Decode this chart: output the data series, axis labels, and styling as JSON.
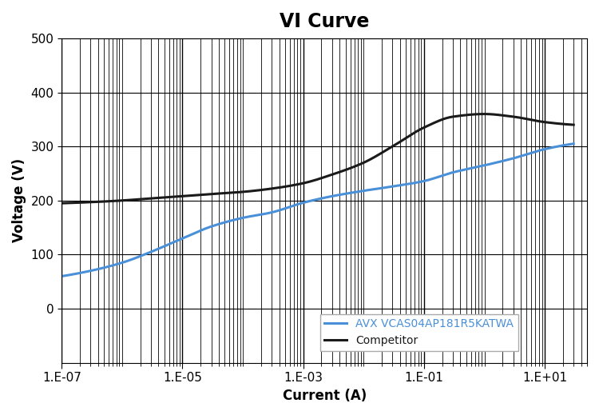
{
  "title": "VI Curve",
  "xlabel": "Current (A)",
  "ylabel": "Voltage (V)",
  "xmin": 1e-07,
  "xmax": 50,
  "ymin": -100,
  "ymax": 500,
  "yticks": [
    0,
    100,
    200,
    300,
    400,
    500
  ],
  "ytick_labels": [
    "0",
    "100",
    "200",
    "300",
    "400",
    "500"
  ],
  "xtick_labels": [
    "1.E-07",
    "1.E-05",
    "1.E-03",
    "1.E-01",
    "1.E+01"
  ],
  "xtick_positions": [
    1e-07,
    1e-05,
    0.001,
    0.1,
    10.0
  ],
  "avx_color": "#4a90d9",
  "competitor_color": "#1a1a1a",
  "avx_label": "AVX VCAS04AP181R5KATWA",
  "competitor_label": "Competitor",
  "background_color": "#ffffff",
  "title_fontsize": 17,
  "label_fontsize": 12,
  "legend_fontsize": 10,
  "avx_x": [
    1e-07,
    3e-07,
    1e-06,
    3e-06,
    1e-05,
    3e-05,
    0.0001,
    0.0003,
    0.001,
    0.003,
    0.01,
    0.03,
    0.1,
    0.3,
    1.0,
    3.0,
    10.0,
    30.0
  ],
  "avx_y": [
    60,
    70,
    85,
    105,
    130,
    152,
    168,
    178,
    196,
    208,
    218,
    226,
    236,
    252,
    265,
    278,
    295,
    305
  ],
  "comp_x": [
    1e-07,
    3e-07,
    1e-06,
    3e-06,
    1e-05,
    3e-05,
    0.0001,
    0.0003,
    0.001,
    0.003,
    0.01,
    0.03,
    0.1,
    0.3,
    1.0,
    3.0,
    10.0,
    30.0
  ],
  "comp_y": [
    195,
    197,
    200,
    204,
    208,
    212,
    216,
    222,
    232,
    248,
    270,
    300,
    335,
    355,
    360,
    355,
    345,
    340
  ]
}
